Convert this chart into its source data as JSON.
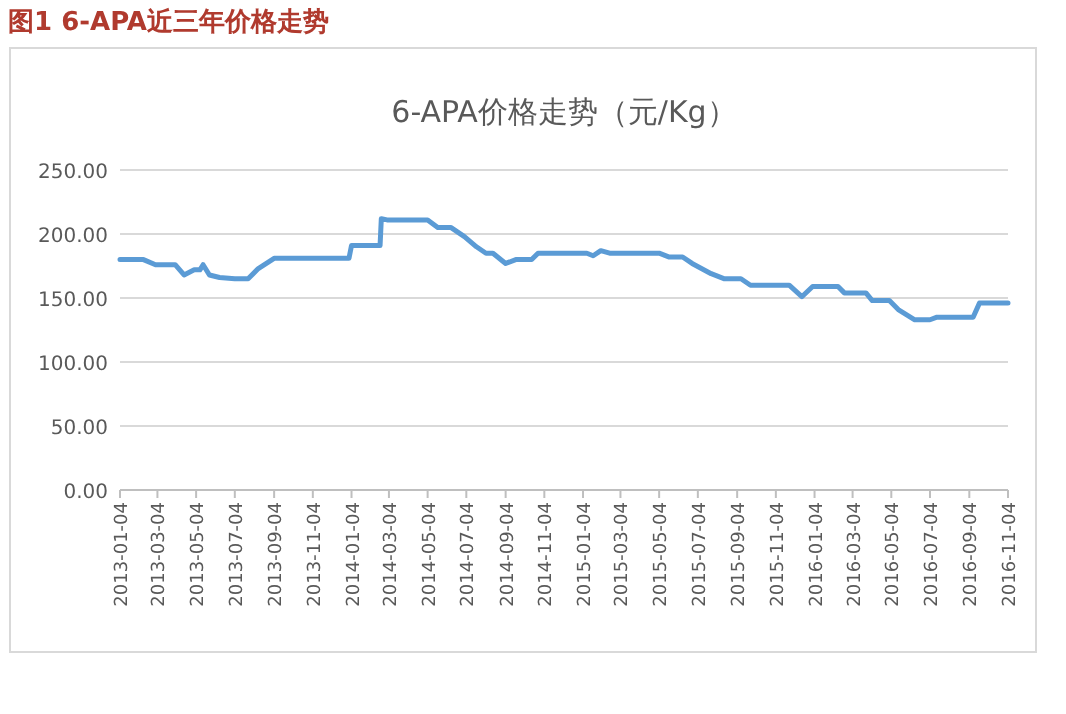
{
  "chart_data": {
    "type": "line",
    "title": "图1 6-APA近三年价格走势",
    "subtitle": "6-APA价格走势（元/Kg）",
    "xlim": [
      "2013-01-04",
      "2016-11-04"
    ],
    "xticks": [
      "2013-01-04",
      "2013-03-04",
      "2013-05-04",
      "2013-07-04",
      "2013-09-04",
      "2013-11-04",
      "2014-01-04",
      "2014-03-04",
      "2014-05-04",
      "2014-07-04",
      "2014-09-04",
      "2014-11-04",
      "2015-01-04",
      "2015-03-04",
      "2015-05-04",
      "2015-07-04",
      "2015-09-04",
      "2015-11-04",
      "2016-01-04",
      "2016-03-04",
      "2016-05-04",
      "2016-07-04",
      "2016-09-04",
      "2016-11-04"
    ],
    "ylim": [
      0,
      250
    ],
    "yticks": [
      {
        "value": 0,
        "label": "0.00"
      },
      {
        "value": 50,
        "label": "50.00"
      },
      {
        "value": 100,
        "label": "100.00"
      },
      {
        "value": 150,
        "label": "150.00"
      },
      {
        "value": 200,
        "label": "200.00"
      },
      {
        "value": 250,
        "label": "250.00"
      }
    ],
    "grid": "y",
    "line_style": "solid",
    "x": [
      "2013-01-04",
      "2013-02-10",
      "2013-03-01",
      "2013-04-01",
      "2013-04-15",
      "2013-05-01",
      "2013-05-10",
      "2013-05-15",
      "2013-05-25",
      "2013-06-10",
      "2013-07-04",
      "2013-07-25",
      "2013-08-10",
      "2013-09-04",
      "2013-12-31",
      "2014-01-04",
      "2014-01-25",
      "2014-02-05",
      "2014-02-18",
      "2014-02-20",
      "2014-03-01",
      "2014-05-04",
      "2014-05-20",
      "2014-06-10",
      "2014-07-01",
      "2014-07-20",
      "2014-08-04",
      "2014-08-15",
      "2014-09-04",
      "2014-09-20",
      "2014-10-15",
      "2014-10-25",
      "2015-01-10",
      "2015-01-20",
      "2015-02-01",
      "2015-02-15",
      "2015-05-04",
      "2015-05-20",
      "2015-06-10",
      "2015-06-25",
      "2015-07-25",
      "2015-08-15",
      "2015-09-10",
      "2015-09-25",
      "2015-11-25",
      "2015-12-15",
      "2016-01-01",
      "2016-02-01",
      "2016-02-10",
      "2016-02-20",
      "2016-03-10",
      "2016-03-25",
      "2016-04-04",
      "2016-05-01",
      "2016-05-15",
      "2016-06-10",
      "2016-07-04",
      "2016-07-15",
      "2016-09-01",
      "2016-09-10",
      "2016-09-20",
      "2016-11-04"
    ],
    "series": [
      {
        "color": "#5b9bd5",
        "values": [
          180,
          180,
          176,
          176,
          168,
          172,
          172,
          176,
          168,
          166,
          165,
          165,
          173,
          181,
          181,
          191,
          191,
          191,
          191,
          212,
          211,
          211,
          205,
          205,
          198,
          190,
          185,
          185,
          177,
          180,
          180,
          185,
          185,
          183,
          187,
          185,
          185,
          182,
          182,
          177,
          169,
          165,
          165,
          160,
          160,
          151,
          159,
          159,
          159,
          154,
          154,
          154,
          148,
          148,
          141,
          133,
          133,
          135,
          135,
          135,
          146,
          146
        ]
      }
    ]
  }
}
